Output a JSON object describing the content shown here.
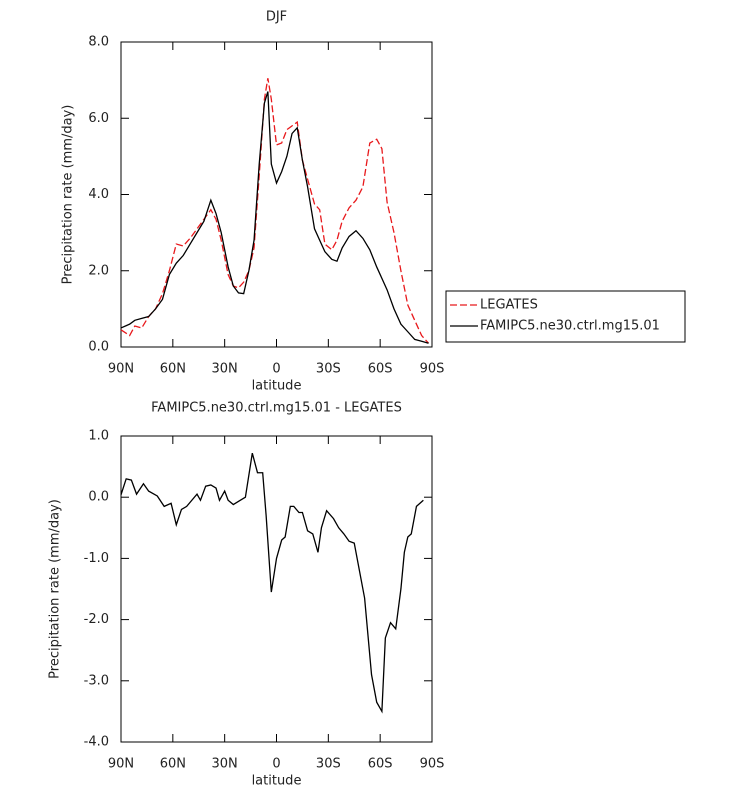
{
  "chart_data": [
    {
      "type": "line",
      "title": "DJF",
      "x_label": "latitude",
      "y_label": "Precipitation rate (mm/day)",
      "x": [
        90,
        85,
        82,
        78,
        74,
        70,
        66,
        62,
        58,
        54,
        50,
        46,
        42,
        38,
        35,
        32,
        28,
        25,
        22,
        19,
        16,
        13,
        10,
        7,
        5,
        3,
        0,
        -3,
        -6,
        -9,
        -12,
        -15,
        -18,
        -22,
        -25,
        -28,
        -32,
        -35,
        -38,
        -42,
        -46,
        -50,
        -54,
        -58,
        -61,
        -64,
        -68,
        -72,
        -76,
        -80,
        -84,
        -88
      ],
      "series": [
        {
          "name": "LEGATES",
          "color": "#e8191c",
          "dashed": true,
          "values": [
            0.45,
            0.3,
            0.55,
            0.5,
            0.8,
            1.0,
            1.4,
            2.0,
            2.7,
            2.65,
            2.85,
            3.1,
            3.35,
            3.6,
            3.35,
            2.8,
            1.9,
            1.6,
            1.55,
            1.7,
            2.0,
            2.6,
            4.5,
            6.5,
            7.05,
            6.5,
            5.3,
            5.35,
            5.7,
            5.8,
            5.9,
            4.9,
            4.4,
            3.75,
            3.6,
            2.7,
            2.55,
            2.8,
            3.3,
            3.65,
            3.85,
            4.2,
            5.35,
            5.45,
            5.2,
            3.8,
            3.0,
            2.0,
            1.1,
            0.7,
            0.3,
            0.1
          ]
        },
        {
          "name": "FAMIPC5.ne30.ctrl.mg15.01",
          "color": "#000000",
          "dashed": false,
          "values": [
            0.5,
            0.6,
            0.7,
            0.75,
            0.8,
            1.0,
            1.25,
            1.9,
            2.2,
            2.4,
            2.7,
            3.0,
            3.3,
            3.85,
            3.5,
            3.0,
            2.1,
            1.6,
            1.42,
            1.4,
            2.0,
            2.8,
            4.8,
            6.4,
            6.7,
            4.8,
            4.3,
            4.6,
            5.0,
            5.6,
            5.75,
            4.9,
            4.2,
            3.1,
            2.8,
            2.5,
            2.3,
            2.25,
            2.6,
            2.9,
            3.05,
            2.85,
            2.55,
            2.1,
            1.8,
            1.5,
            1.0,
            0.6,
            0.4,
            0.2,
            0.15,
            0.1
          ]
        }
      ],
      "xlim": [
        90,
        -90
      ],
      "xticks": [
        {
          "value": 90,
          "label": "90N"
        },
        {
          "value": 60,
          "label": "60N"
        },
        {
          "value": 30,
          "label": "30N"
        },
        0,
        {
          "value": -30,
          "label": "30S"
        },
        {
          "value": -60,
          "label": "60S"
        },
        {
          "value": -90,
          "label": "90S"
        }
      ],
      "ylim": [
        0,
        8
      ],
      "yticks": [
        {
          "value": 0,
          "label": "0.0"
        },
        {
          "value": 2,
          "label": "2.0"
        },
        {
          "value": 4,
          "label": "4.0"
        },
        {
          "value": 6,
          "label": "6.0"
        },
        {
          "value": 8,
          "label": "8.0"
        }
      ],
      "legend": "outside-right"
    },
    {
      "type": "line",
      "title": "FAMIPC5.ne30.ctrl.mg15.01 - LEGATES",
      "x_label": "latitude",
      "y_label": "Precipitation rate (mm/day)",
      "x": [
        90,
        87,
        84,
        81,
        77,
        74,
        69,
        65,
        61,
        58,
        55,
        52,
        46,
        44,
        41,
        38,
        35,
        33,
        30,
        28,
        25,
        21,
        18,
        14,
        11,
        8,
        6,
        3,
        0,
        -3,
        -5,
        -8,
        -10,
        -13,
        -15,
        -18,
        -21,
        -24,
        -26,
        -29,
        -33,
        -36,
        -39,
        -42,
        -45,
        -48,
        -51,
        -55,
        -58,
        -61,
        -63,
        -66,
        -69,
        -72,
        -74,
        -76,
        -78,
        -81,
        -85
      ],
      "values": [
        0.04,
        0.3,
        0.28,
        0.05,
        0.22,
        0.1,
        0.02,
        -0.15,
        -0.1,
        -0.45,
        -0.2,
        -0.15,
        0.05,
        -0.05,
        0.18,
        0.2,
        0.15,
        -0.05,
        0.1,
        -0.05,
        -0.12,
        -0.05,
        0.0,
        0.72,
        0.4,
        0.4,
        -0.3,
        -1.55,
        -1.0,
        -0.7,
        -0.65,
        -0.15,
        -0.15,
        -0.25,
        -0.25,
        -0.55,
        -0.6,
        -0.9,
        -0.5,
        -0.22,
        -0.35,
        -0.5,
        -0.6,
        -0.72,
        -0.75,
        -1.2,
        -1.65,
        -2.9,
        -3.35,
        -3.5,
        -2.3,
        -2.05,
        -2.15,
        -1.5,
        -0.9,
        -0.65,
        -0.6,
        -0.15,
        -0.05
      ],
      "color": "#000000",
      "xlim": [
        90,
        -90
      ],
      "xticks": [
        {
          "value": 90,
          "label": "90N"
        },
        {
          "value": 60,
          "label": "60N"
        },
        {
          "value": 30,
          "label": "30N"
        },
        0,
        {
          "value": -30,
          "label": "30S"
        },
        {
          "value": -60,
          "label": "60S"
        },
        {
          "value": -90,
          "label": "90S"
        }
      ],
      "ylim": [
        -4,
        1
      ],
      "yticks": [
        {
          "value": -4,
          "label": "-4.0"
        },
        {
          "value": -3,
          "label": "-3.0"
        },
        {
          "value": -2,
          "label": "-2.0"
        },
        {
          "value": -1,
          "label": "-1.0"
        },
        {
          "value": 0,
          "label": "0.0"
        },
        {
          "value": 1,
          "label": "1.0"
        }
      ]
    }
  ]
}
